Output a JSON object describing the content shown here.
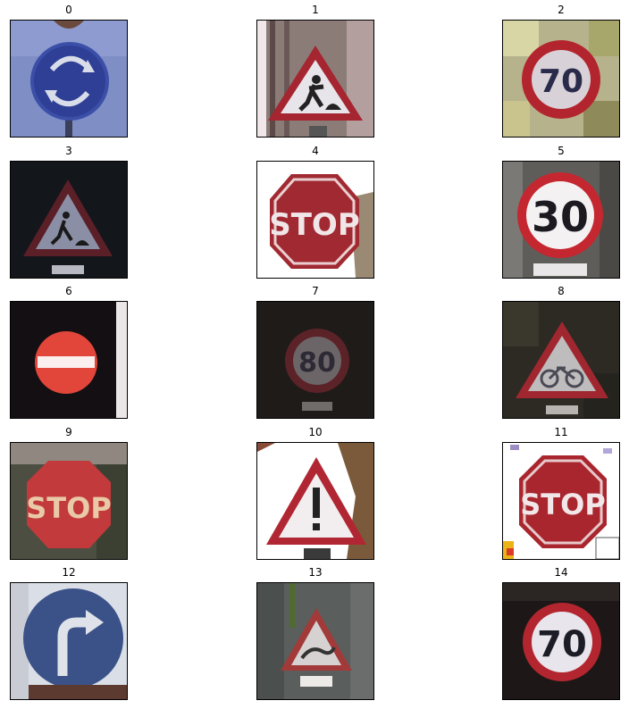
{
  "figure": {
    "panels": [
      {
        "label": "0",
        "icon": "roundabout-sign",
        "bg": "#7e8ec4"
      },
      {
        "label": "1",
        "icon": "road-work-sign",
        "bg": "#8a7a78"
      },
      {
        "label": "2",
        "icon": "speed-limit-sign",
        "bg": "#b7b48a",
        "text": "70"
      },
      {
        "label": "3",
        "icon": "road-work-sign",
        "bg": "#121418"
      },
      {
        "label": "4",
        "icon": "stop-sign",
        "bg": "#ffffff",
        "text": "STOP"
      },
      {
        "label": "5",
        "icon": "speed-limit-sign",
        "bg": "#5d5d5a",
        "text": "30"
      },
      {
        "label": "6",
        "icon": "no-entry-sign",
        "bg": "#151013"
      },
      {
        "label": "7",
        "icon": "speed-limit-sign",
        "bg": "#1f1b19",
        "text": "80"
      },
      {
        "label": "8",
        "icon": "bicycle-warning-sign",
        "bg": "#2c2a23"
      },
      {
        "label": "9",
        "icon": "stop-sign",
        "bg": "#4a4d3f",
        "text": "STOP"
      },
      {
        "label": "10",
        "icon": "general-caution-sign",
        "bg": "#ffffff"
      },
      {
        "label": "11",
        "icon": "stop-sign",
        "bg": "#ffffff",
        "text": "STOP"
      },
      {
        "label": "12",
        "icon": "turn-right-ahead-sign",
        "bg": "#d8dde6"
      },
      {
        "label": "13",
        "icon": "slippery-road-sign",
        "bg": "#595d5b"
      },
      {
        "label": "14",
        "icon": "speed-limit-sign",
        "bg": "#1c1716",
        "text": "70"
      }
    ]
  }
}
